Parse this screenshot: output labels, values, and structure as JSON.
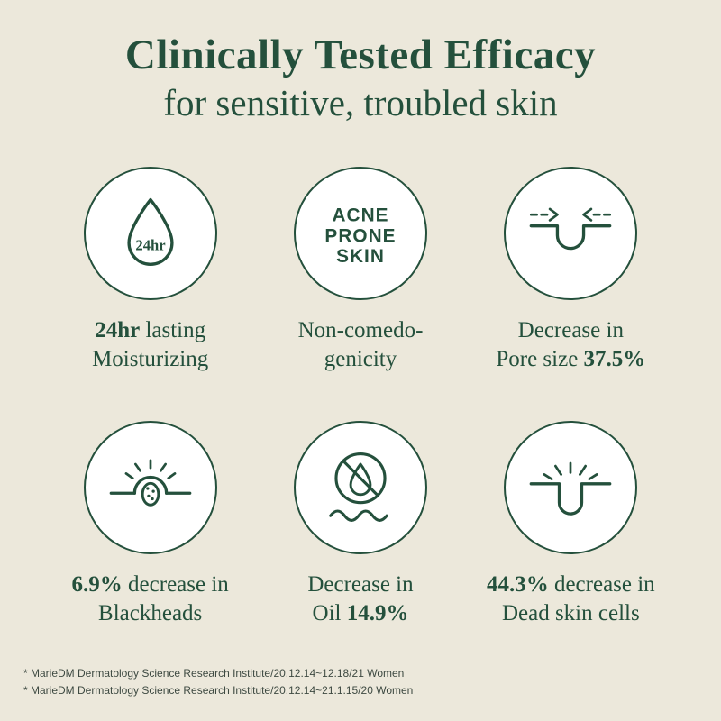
{
  "page": {
    "background": "#ece8db",
    "accent": "#24503c",
    "card_background": "#ffffff"
  },
  "header": {
    "title": "Clinically Tested Efficacy",
    "subtitle": "for sensitive, troubled skin"
  },
  "cards": [
    {
      "icon": "water-drop-24hr",
      "icon_label": "24hr",
      "caption": {
        "line1": [
          {
            "t": "24hr",
            "b": true
          },
          {
            "t": " lasting",
            "b": false
          }
        ],
        "line2": [
          {
            "t": "Moisturizing",
            "b": false
          }
        ]
      }
    },
    {
      "icon": "acne-prone-skin",
      "icon_lines": [
        "ACNE",
        "PRONE",
        "SKIN"
      ],
      "caption": {
        "line1": [
          {
            "t": "Non-comedo-",
            "b": false
          }
        ],
        "line2": [
          {
            "t": "genicity",
            "b": false
          }
        ]
      }
    },
    {
      "icon": "pore-size-decrease",
      "caption": {
        "line1": [
          {
            "t": "Decrease in",
            "b": false
          }
        ],
        "line2": [
          {
            "t": "Pore size ",
            "b": false
          },
          {
            "t": "37.5%",
            "b": true
          }
        ]
      }
    },
    {
      "icon": "blackheads",
      "caption": {
        "line1": [
          {
            "t": "6.9%",
            "b": true
          },
          {
            "t": " decrease in",
            "b": false
          }
        ],
        "line2": [
          {
            "t": "Blackheads",
            "b": false
          }
        ]
      }
    },
    {
      "icon": "oil-crossed",
      "caption": {
        "line1": [
          {
            "t": "Decrease in",
            "b": false
          }
        ],
        "line2": [
          {
            "t": "Oil ",
            "b": false
          },
          {
            "t": "14.9%",
            "b": true
          }
        ]
      }
    },
    {
      "icon": "dead-skin-cells",
      "caption": {
        "line1": [
          {
            "t": "44.3%",
            "b": true
          },
          {
            "t": " decrease in",
            "b": false
          }
        ],
        "line2": [
          {
            "t": "Dead skin cells",
            "b": false
          }
        ]
      }
    }
  ],
  "footnotes": [
    "* MarieDM Dermatology Science Research Institute/20.12.14~12.18/21 Women",
    "* MarieDM Dermatology Science Research Institute/20.12.14~21.1.15/20 Women"
  ]
}
